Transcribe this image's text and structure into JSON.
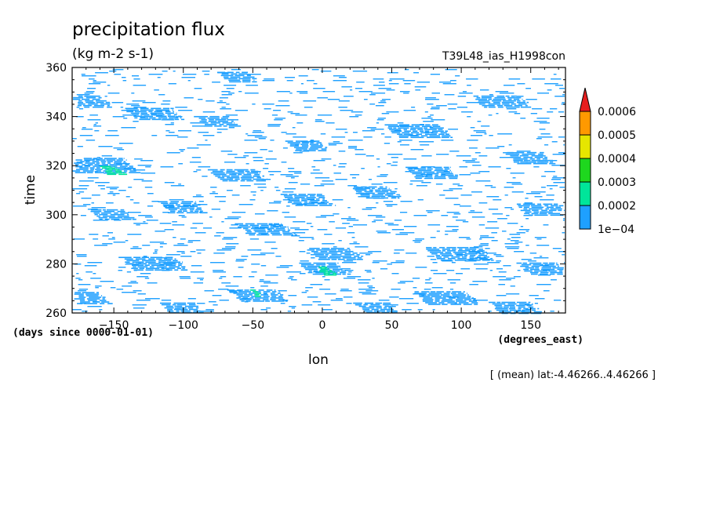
{
  "chart_data": {
    "type": "heatmap",
    "title": "precipitation flux",
    "units": "(kg m-2 s-1)",
    "run_name": "T39L48_ias_H1998con",
    "xlabel": "lon",
    "ylabel": "time",
    "x_units": "(degrees_east)",
    "y_units": "(days since 0000-01-01)",
    "xlim": [
      -180,
      175
    ],
    "ylim": [
      260,
      360
    ],
    "x_ticks": [
      -150,
      -100,
      -50,
      0,
      50,
      100,
      150
    ],
    "x_tick_labels": [
      "-150",
      "-100",
      "-50",
      "0",
      "50",
      "100",
      "150"
    ],
    "y_ticks": [
      260,
      280,
      300,
      320,
      340,
      360
    ],
    "y_tick_labels": [
      "260",
      "280",
      "300",
      "320",
      "340",
      "360"
    ],
    "note": "[ (mean) lat:-4.46266..4.46266 ]",
    "colorbar": {
      "levels": [
        0.0001,
        0.0002,
        0.0003,
        0.0004,
        0.0005,
        0.0006
      ],
      "labels": [
        "1e-04",
        "0.0002",
        "0.0003",
        "0.0004",
        "0.0005",
        "0.0006"
      ],
      "colors": [
        "#1ea0ff",
        "#00e59a",
        "#1ed71e",
        "#e6e600",
        "#ff9900",
        "#e61e1e"
      ],
      "extend": "max"
    },
    "patches": [
      {
        "lon": -170,
        "t": 346,
        "len": 28,
        "level": 0
      },
      {
        "lon": -120,
        "t": 341,
        "len": 30,
        "level": 0
      },
      {
        "lon": -75,
        "t": 338,
        "len": 22,
        "level": 0
      },
      {
        "lon": 130,
        "t": 346,
        "len": 30,
        "level": 0
      },
      {
        "lon": 70,
        "t": 334,
        "len": 34,
        "level": 0
      },
      {
        "lon": -160,
        "t": 320,
        "len": 40,
        "level": 0
      },
      {
        "lon": -150,
        "t": 318,
        "len": 12,
        "level": 1
      },
      {
        "lon": -60,
        "t": 316,
        "len": 30,
        "level": 0
      },
      {
        "lon": -10,
        "t": 306,
        "len": 26,
        "level": 0
      },
      {
        "lon": 40,
        "t": 309,
        "len": 24,
        "level": 0
      },
      {
        "lon": 80,
        "t": 317,
        "len": 28,
        "level": 0
      },
      {
        "lon": 160,
        "t": 302,
        "len": 28,
        "level": 0
      },
      {
        "lon": -100,
        "t": 303,
        "len": 24,
        "level": 0
      },
      {
        "lon": -150,
        "t": 300,
        "len": 22,
        "level": 0
      },
      {
        "lon": -40,
        "t": 294,
        "len": 30,
        "level": 0
      },
      {
        "lon": 10,
        "t": 284,
        "len": 28,
        "level": 0
      },
      {
        "lon": 2,
        "t": 278,
        "len": 24,
        "level": 0
      },
      {
        "lon": 4,
        "t": 277,
        "len": 10,
        "level": 1
      },
      {
        "lon": -120,
        "t": 280,
        "len": 34,
        "level": 0
      },
      {
        "lon": 100,
        "t": 284,
        "len": 34,
        "level": 0
      },
      {
        "lon": 160,
        "t": 278,
        "len": 26,
        "level": 0
      },
      {
        "lon": -170,
        "t": 266,
        "len": 26,
        "level": 0
      },
      {
        "lon": -45,
        "t": 267,
        "len": 30,
        "level": 0
      },
      {
        "lon": -47,
        "t": 268,
        "len": 6,
        "level": 1
      },
      {
        "lon": 90,
        "t": 266,
        "len": 32,
        "level": 0
      },
      {
        "lon": 140,
        "t": 262,
        "len": 26,
        "level": 0
      },
      {
        "lon": 40,
        "t": 262,
        "len": 22,
        "level": 0
      },
      {
        "lon": -100,
        "t": 262,
        "len": 22,
        "level": 0
      },
      {
        "lon": 150,
        "t": 323,
        "len": 24,
        "level": 0
      },
      {
        "lon": -10,
        "t": 328,
        "len": 22,
        "level": 0
      },
      {
        "lon": -60,
        "t": 356,
        "len": 20,
        "level": 0
      }
    ]
  }
}
